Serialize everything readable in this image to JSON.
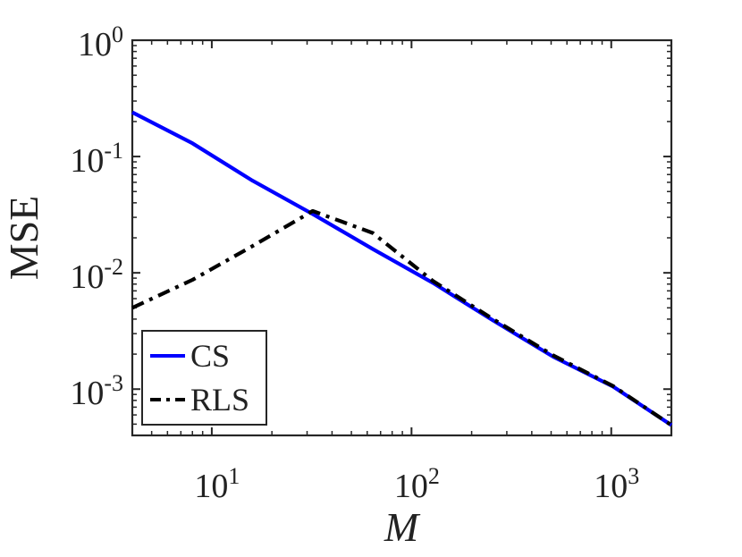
{
  "chart_data": {
    "type": "line",
    "title": "",
    "xlabel": "M",
    "ylabel": "MSE",
    "xscale": "log",
    "yscale": "log",
    "xlim": [
      4,
      2000
    ],
    "ylim": [
      0.0004,
      1
    ],
    "grid": false,
    "legend_position": "bottom-left",
    "x_ticks": [
      {
        "value": 10,
        "base": "10",
        "exp": "1"
      },
      {
        "value": 100,
        "base": "10",
        "exp": "2"
      },
      {
        "value": 1000,
        "base": "10",
        "exp": "3"
      }
    ],
    "y_ticks": [
      {
        "value": 1,
        "base": "10",
        "exp": "0"
      },
      {
        "value": 0.1,
        "base": "10",
        "exp": "-1"
      },
      {
        "value": 0.01,
        "base": "10",
        "exp": "-2"
      },
      {
        "value": 0.001,
        "base": "10",
        "exp": "-3"
      }
    ],
    "series": [
      {
        "name": "CS",
        "color": "#0000ff",
        "style": "solid",
        "x": [
          4,
          8,
          16,
          32,
          64,
          128,
          256,
          512,
          1024,
          2000
        ],
        "y": [
          0.24,
          0.13,
          0.062,
          0.032,
          0.016,
          0.0082,
          0.0039,
          0.0019,
          0.00105,
          0.00049
        ]
      },
      {
        "name": "RLS",
        "color": "#000000",
        "style": "dashdot",
        "x": [
          4,
          8,
          16,
          32,
          64,
          128,
          256,
          512,
          1024,
          2000
        ],
        "y": [
          0.005,
          0.0087,
          0.017,
          0.034,
          0.022,
          0.0085,
          0.004,
          0.00195,
          0.00106,
          0.00049
        ]
      }
    ]
  }
}
